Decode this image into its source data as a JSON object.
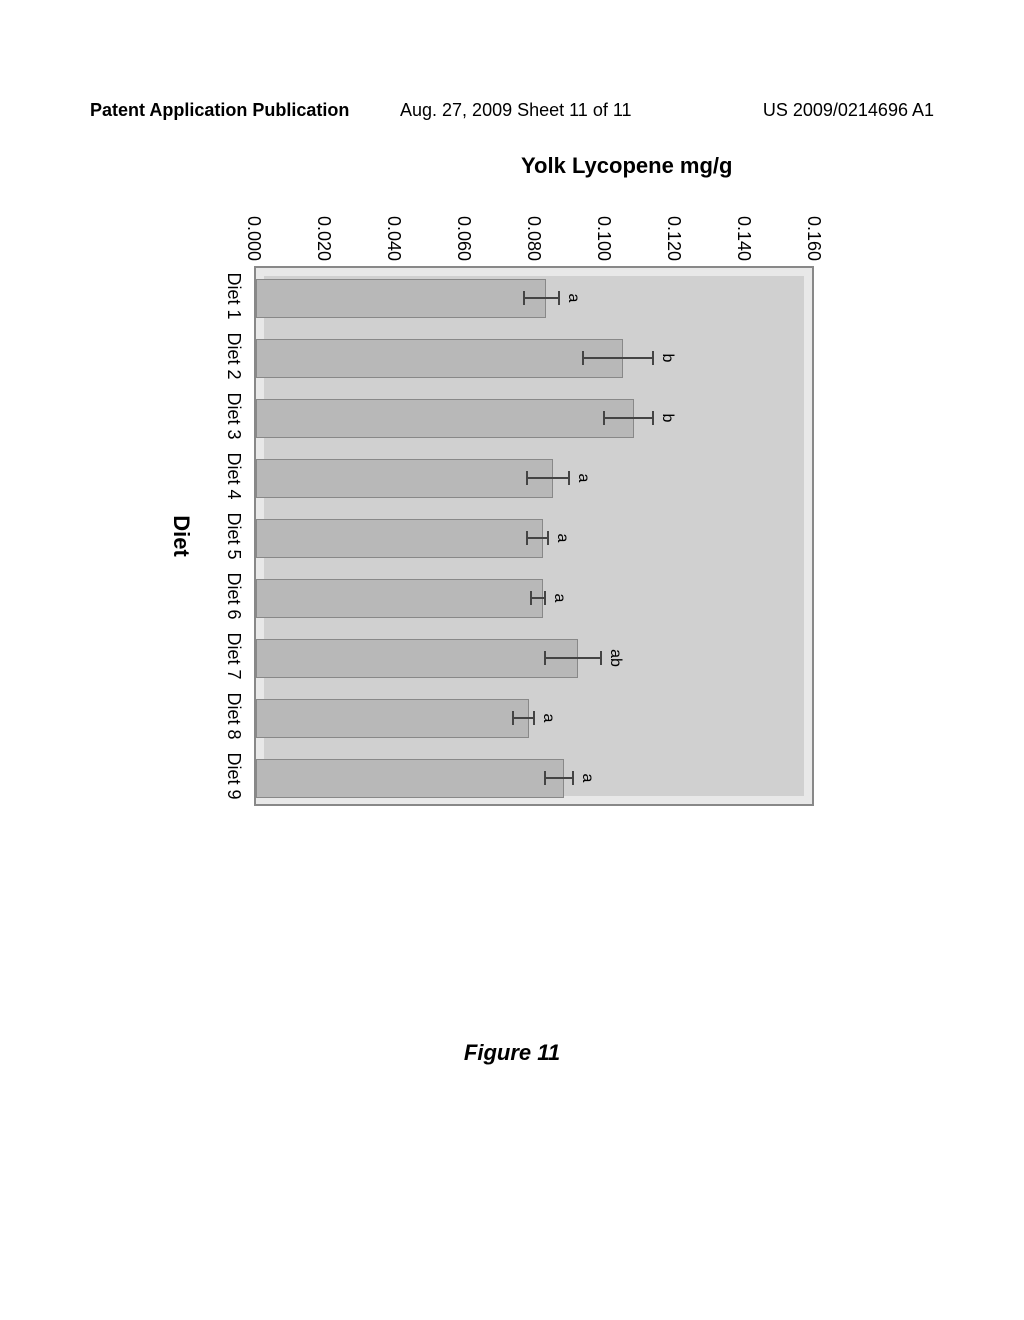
{
  "header": {
    "left": "Patent Application Publication",
    "center": "Aug. 27, 2009  Sheet 11 of 11",
    "right": "US 2009/0214696 A1"
  },
  "chart": {
    "type": "bar",
    "y_axis_label": "Yolk Lycopene mg/g",
    "x_axis_label": "Diet",
    "ylim": [
      0,
      0.16
    ],
    "y_ticks": [
      "0.000",
      "0.020",
      "0.040",
      "0.060",
      "0.080",
      "0.100",
      "0.120",
      "0.140",
      "0.160"
    ],
    "categories": [
      "Diet 1",
      "Diet 2",
      "Diet 3",
      "Diet 4",
      "Diet 5",
      "Diet 6",
      "Diet 7",
      "Diet 8",
      "Diet 9"
    ],
    "values": [
      0.083,
      0.105,
      0.108,
      0.085,
      0.082,
      0.082,
      0.092,
      0.078,
      0.088
    ],
    "errors": [
      0.005,
      0.01,
      0.007,
      0.006,
      0.003,
      0.002,
      0.008,
      0.003,
      0.004
    ],
    "sig_labels": [
      "a",
      "b",
      "b",
      "a",
      "a",
      "a",
      "ab",
      "a",
      "a"
    ],
    "bar_color": "#b8b8b8",
    "plot_bg": "#d0d0d0",
    "border_color": "#888888",
    "title_fontsize": 22,
    "tick_fontsize": 18
  },
  "caption": "Figure 11"
}
